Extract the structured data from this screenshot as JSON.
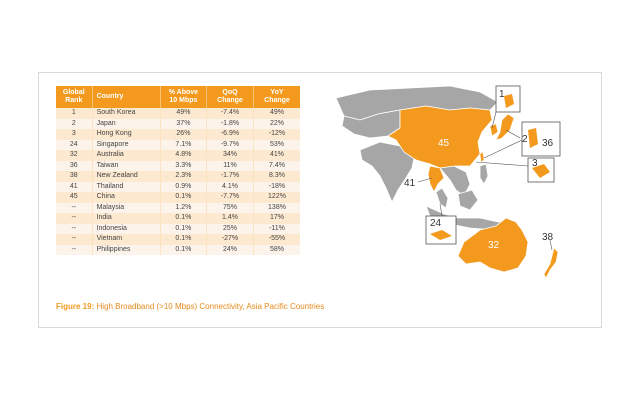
{
  "table": {
    "headers": {
      "rank": [
        "Global",
        "Rank"
      ],
      "country": "Country",
      "above": [
        "% Above",
        "10 Mbps"
      ],
      "qoq": [
        "QoQ",
        "Change"
      ],
      "yoy": [
        "YoY",
        "Change"
      ]
    },
    "rows": [
      {
        "rank": "1",
        "country": "South Korea",
        "above": "49%",
        "qoq": "-7.4%",
        "yoy": "49%"
      },
      {
        "rank": "2",
        "country": "Japan",
        "above": "37%",
        "qoq": "-1.8%",
        "yoy": "22%"
      },
      {
        "rank": "3",
        "country": "Hong Kong",
        "above": "26%",
        "qoq": "-6.9%",
        "yoy": "-12%"
      },
      {
        "rank": "24",
        "country": "Singapore",
        "above": "7.1%",
        "qoq": "-9.7%",
        "yoy": "53%"
      },
      {
        "rank": "32",
        "country": "Australia",
        "above": "4.8%",
        "qoq": "34%",
        "yoy": "41%"
      },
      {
        "rank": "36",
        "country": "Taiwan",
        "above": "3.3%",
        "qoq": "11%",
        "yoy": "7.4%"
      },
      {
        "rank": "38",
        "country": "New Zealand",
        "above": "2.3%",
        "qoq": "-1.7%",
        "yoy": "8.3%"
      },
      {
        "rank": "41",
        "country": "Thailand",
        "above": "0.9%",
        "qoq": "4.1%",
        "yoy": "-18%"
      },
      {
        "rank": "45",
        "country": "China",
        "above": "0.1%",
        "qoq": "-7.7%",
        "yoy": "122%"
      },
      {
        "rank": "--",
        "country": "Malaysia",
        "above": "1.2%",
        "qoq": "75%",
        "yoy": "138%"
      },
      {
        "rank": "--",
        "country": "India",
        "above": "0.1%",
        "qoq": "1.4%",
        "yoy": "17%"
      },
      {
        "rank": "--",
        "country": "Indonesia",
        "above": "0.1%",
        "qoq": "25%",
        "yoy": "-11%"
      },
      {
        "rank": "--",
        "country": "Vietnam",
        "above": "0.1%",
        "qoq": "-27%",
        "yoy": "-55%"
      },
      {
        "rank": "--",
        "country": "Philippines",
        "above": "0.1%",
        "qoq": "24%",
        "yoy": "58%"
      }
    ]
  },
  "caption": {
    "lead": "Figure 19:",
    "rest": " High Broadband (>10 Mbps) Connectivity, Asia Pacific Countries"
  },
  "map": {
    "labels": {
      "south_korea": "1",
      "japan": "2",
      "hong_kong": "3",
      "singapore": "24",
      "australia": "32",
      "taiwan": "36",
      "new_zealand": "38",
      "thailand": "41",
      "china": "45"
    },
    "colors": {
      "highlight": "#f39a1e",
      "land": "#a6a6a6",
      "outline": "#ffffff"
    }
  }
}
